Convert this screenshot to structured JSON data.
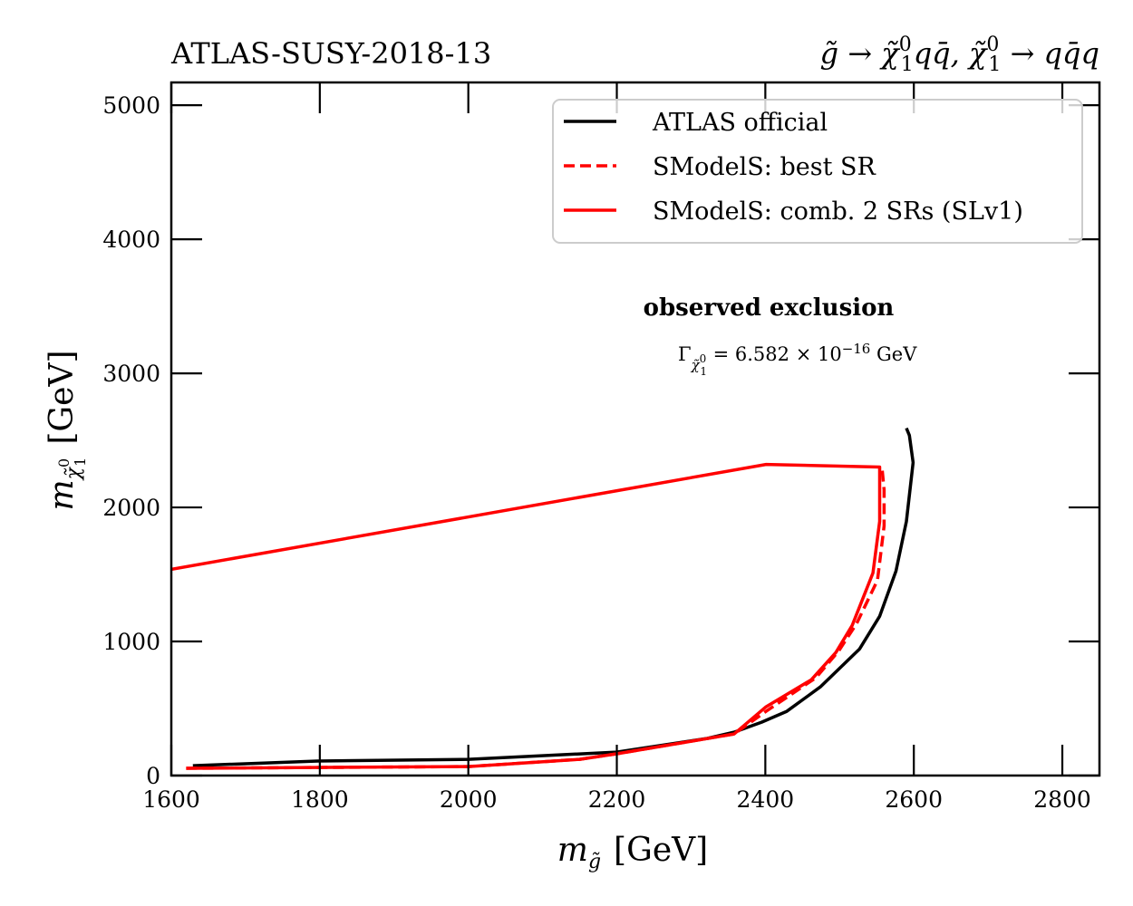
{
  "chart_data": {
    "type": "line",
    "title_left": "ATLAS-SUSY-2018-13",
    "title_right": {
      "text": "g̃ → χ̃₁⁰ q q̄, χ̃₁⁰ → q q̄ q",
      "parts": [
        "g̃",
        " → ",
        "χ̃",
        "0",
        "1",
        "qq̄, ",
        "χ̃",
        "0",
        "1",
        " → qq̄q"
      ]
    },
    "xlabel": {
      "text": "m_g̃ [GeV]",
      "main": "m",
      "sub": "g̃",
      "unit": "[GeV]"
    },
    "ylabel": {
      "text": "m_χ̃₁⁰ [GeV]",
      "main": "m",
      "sub": "χ̃",
      "sub_sup": "0",
      "sub_sub": "1",
      "unit": "[GeV]"
    },
    "xlim": [
      1600,
      2850
    ],
    "ylim": [
      0,
      5170
    ],
    "xticks": [
      1600,
      1800,
      2000,
      2200,
      2400,
      2600,
      2800
    ],
    "xtick_labels": [
      "1600",
      "1800",
      "2000",
      "2200",
      "2400",
      "2600",
      "2800"
    ],
    "yticks": [
      0,
      1000,
      2000,
      3000,
      4000,
      5000
    ],
    "ytick_labels": [
      "0",
      "1000",
      "2000",
      "3000",
      "4000",
      "5000"
    ],
    "grid": false,
    "legend_position": "top-right",
    "annotations": {
      "observed": "observed exclusion",
      "width_label": "Γ",
      "width_sub": "χ̃",
      "width_sub_sup": "0",
      "width_sub_sub": "1",
      "width_value": " = 6.582 × 10",
      "width_exp": "−16",
      "width_unit": " GeV"
    },
    "series": [
      {
        "name": "ATLAS official",
        "color": "#000000",
        "dash": "solid",
        "x": [
          1629,
          1797,
          2000,
          2200,
          2322,
          2358,
          2395,
          2429,
          2474,
          2527,
          2554,
          2576,
          2590,
          2599,
          2594,
          2590
        ],
        "y": [
          74,
          108,
          121,
          175,
          277,
          324,
          398,
          479,
          661,
          945,
          1188,
          1525,
          1896,
          2335,
          2537,
          2591
        ]
      },
      {
        "name": "SModelS: best SR",
        "color": "#ff0000",
        "dash": "dashed",
        "x": [
          1620,
          2000,
          2150,
          2200,
          2358,
          2401,
          2468,
          2499,
          2523,
          2551,
          2560,
          2560,
          2557
        ],
        "y": [
          54,
          67,
          121,
          162,
          310,
          479,
          729,
          931,
          1134,
          1457,
          1862,
          2132,
          2301
        ]
      },
      {
        "name": "SModelS: comb. 2 SRs (SLv1)",
        "color": "#ff0000",
        "dash": "solid",
        "x": [
          1620,
          2000,
          2150,
          2200,
          2358,
          2401,
          2462,
          2495,
          2517,
          2545,
          2554,
          2554,
          2401,
          1600
        ],
        "y": [
          54,
          67,
          121,
          162,
          310,
          513,
          715,
          918,
          1120,
          1511,
          1896,
          2301,
          2321,
          1538
        ]
      }
    ]
  }
}
